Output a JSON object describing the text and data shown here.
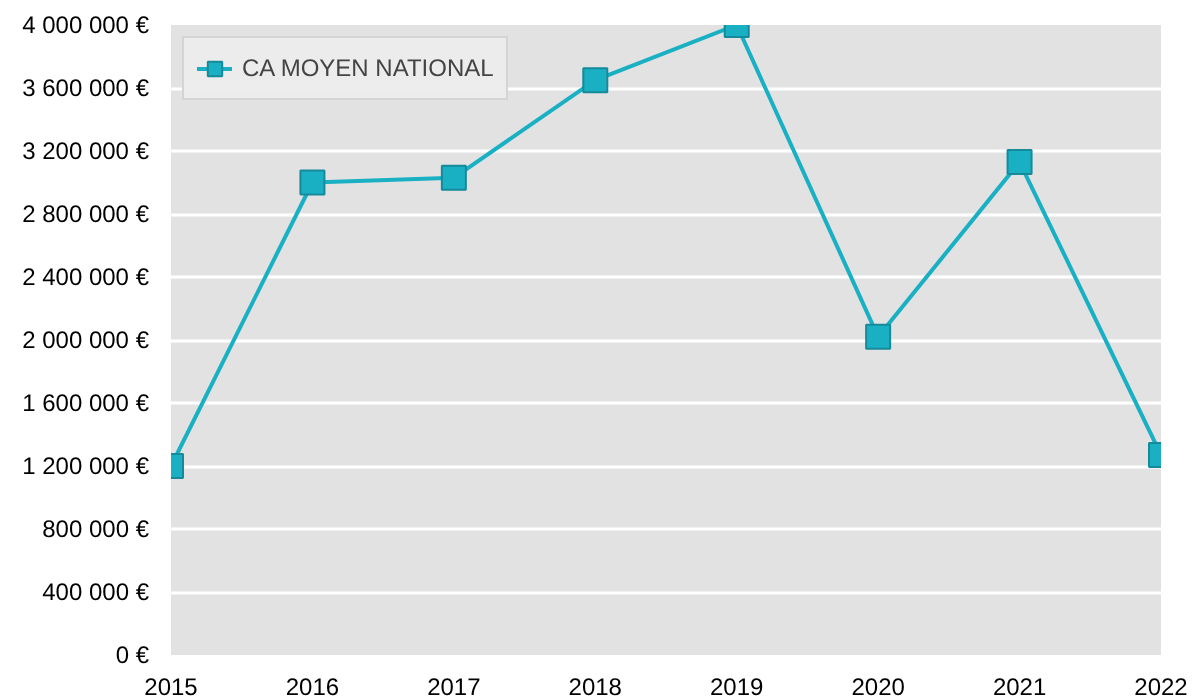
{
  "chart_data": {
    "type": "line",
    "x": [
      2015,
      2016,
      2017,
      2018,
      2019,
      2020,
      2021,
      2022
    ],
    "series": [
      {
        "name": "CA MOYEN NATIONAL",
        "color": "#1ab0c4",
        "values": [
          1200000,
          3000000,
          3030000,
          3650000,
          4000000,
          2020000,
          3130000,
          1270000
        ]
      }
    ],
    "xlim": [
      2015,
      2022
    ],
    "xticks": [
      2015,
      2016,
      2017,
      2018,
      2019,
      2020,
      2021,
      2022
    ],
    "ylim": [
      0,
      4000000
    ],
    "yticks": [
      {
        "value": 0,
        "label": "0 €"
      },
      {
        "value": 400000,
        "label": "400 000 €"
      },
      {
        "value": 800000,
        "label": "800 000 €"
      },
      {
        "value": 1200000,
        "label": "1 200 000 €"
      },
      {
        "value": 1600000,
        "label": "1 600 000 €"
      },
      {
        "value": 2000000,
        "label": "2 000 000 €"
      },
      {
        "value": 2400000,
        "label": "2 400 000 €"
      },
      {
        "value": 2800000,
        "label": "2 800 000 €"
      },
      {
        "value": 3200000,
        "label": "3 200 000 €"
      },
      {
        "value": 3600000,
        "label": "3 600 000 €"
      },
      {
        "value": 4000000,
        "label": "4 000 000 €"
      }
    ],
    "grid": "y",
    "legend": "top left",
    "marker": "square",
    "line_style": "solid"
  }
}
